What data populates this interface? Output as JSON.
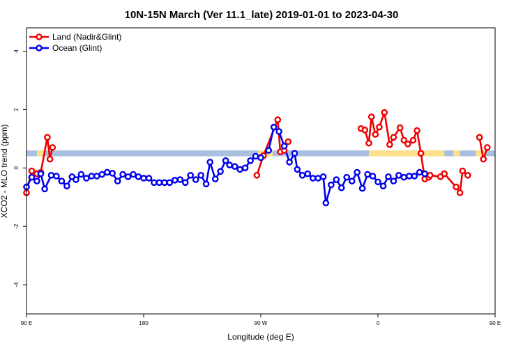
{
  "chart_data": {
    "type": "line",
    "title": "10N-15N March (Ver 11.1_late)   2019-01-01 to 2023-04-30",
    "xlabel": "Longitude (deg E)",
    "ylabel": "XCO2 - MLO trend (ppm)",
    "xlim": [
      90,
      450
    ],
    "ylim": [
      -5,
      4.8
    ],
    "x_ticks": [
      {
        "value": 90,
        "label": "90 E"
      },
      {
        "value": 180,
        "label": "180"
      },
      {
        "value": 270,
        "label": "90 W"
      },
      {
        "value": 360,
        "label": "0"
      },
      {
        "value": 450,
        "label": "90 E"
      },
      {
        "value": 540,
        "label": "180"
      }
    ],
    "y_ticks": [
      {
        "value": -4,
        "label": "-4"
      },
      {
        "value": -2,
        "label": "-2"
      },
      {
        "value": 0,
        "label": "0"
      },
      {
        "value": 2,
        "label": "2"
      },
      {
        "value": 4,
        "label": "4"
      }
    ],
    "grid": false,
    "legend_position": "top-left",
    "band": {
      "y_low": 0.4,
      "y_high": 0.6,
      "color": "#a9bfe0",
      "land_color": "#fce08a",
      "land_x_ranges": [
        [
          98,
          104
        ],
        [
          268,
          279
        ],
        [
          353,
          411
        ],
        [
          418,
          423
        ],
        [
          435,
          442
        ]
      ]
    },
    "series": [
      {
        "name": "Land (Nadir&Glint)",
        "color": "#ee0000",
        "segments": [
          [
            [
              90,
              -0.85
            ],
            [
              94,
              -0.1
            ],
            [
              98,
              -0.2
            ],
            [
              101,
              -0.15
            ],
            [
              106,
              1.05
            ],
            [
              108,
              0.3
            ],
            [
              110,
              0.7
            ]
          ],
          [
            [
              267,
              -0.25
            ],
            [
              272,
              0.42
            ],
            [
              283,
              1.65
            ],
            [
              285,
              0.55
            ],
            [
              288,
              0.6
            ],
            [
              291,
              0.9
            ]
          ],
          [
            [
              347,
              1.35
            ],
            [
              350,
              1.3
            ],
            [
              353,
              0.85
            ],
            [
              355,
              1.75
            ],
            [
              358,
              1.15
            ],
            [
              361,
              1.4
            ],
            [
              365,
              1.9
            ],
            [
              369,
              0.8
            ],
            [
              372,
              1.05
            ],
            [
              377,
              1.38
            ],
            [
              380,
              0.95
            ],
            [
              383,
              0.82
            ],
            [
              387,
              0.95
            ],
            [
              390,
              1.28
            ],
            [
              393,
              0.5
            ],
            [
              396,
              -0.38
            ],
            [
              399,
              -0.32
            ]
          ],
          [
            [
              400,
              -0.25
            ],
            [
              408,
              -0.3
            ],
            [
              411,
              -0.2
            ],
            [
              420,
              -0.65
            ],
            [
              423,
              -0.85
            ],
            [
              425,
              -0.1
            ],
            [
              429,
              -0.25
            ]
          ],
          [
            [
              438,
              1.05
            ],
            [
              441,
              0.3
            ],
            [
              444,
              0.7
            ]
          ]
        ]
      },
      {
        "name": "Ocean (Glint)",
        "color": "#0000ee",
        "points": [
          [
            90,
            -0.65
          ],
          [
            94,
            -0.32
          ],
          [
            98,
            -0.45
          ],
          [
            101,
            -0.2
          ],
          [
            104,
            -0.72
          ],
          [
            109,
            -0.25
          ],
          [
            113,
            -0.28
          ],
          [
            117,
            -0.45
          ],
          [
            121,
            -0.62
          ],
          [
            125,
            -0.3
          ],
          [
            128,
            -0.4
          ],
          [
            132,
            -0.22
          ],
          [
            136,
            -0.35
          ],
          [
            140,
            -0.28
          ],
          [
            144,
            -0.28
          ],
          [
            148,
            -0.22
          ],
          [
            152,
            -0.15
          ],
          [
            156,
            -0.18
          ],
          [
            160,
            -0.45
          ],
          [
            164,
            -0.22
          ],
          [
            168,
            -0.3
          ],
          [
            172,
            -0.22
          ],
          [
            176,
            -0.3
          ],
          [
            180,
            -0.35
          ],
          [
            184,
            -0.35
          ],
          [
            188,
            -0.5
          ],
          [
            192,
            -0.5
          ],
          [
            196,
            -0.5
          ],
          [
            200,
            -0.5
          ],
          [
            204,
            -0.42
          ],
          [
            208,
            -0.4
          ],
          [
            212,
            -0.5
          ],
          [
            216,
            -0.25
          ],
          [
            220,
            -0.4
          ],
          [
            224,
            -0.25
          ],
          [
            228,
            -0.55
          ],
          [
            231,
            0.2
          ],
          [
            235,
            -0.38
          ],
          [
            239,
            -0.12
          ],
          [
            243,
            0.25
          ],
          [
            246,
            0.1
          ],
          [
            250,
            0.05
          ],
          [
            254,
            -0.05
          ],
          [
            258,
            0.0
          ],
          [
            262,
            0.25
          ],
          [
            266,
            0.4
          ],
          [
            270,
            0.35
          ],
          [
            276,
            0.6
          ],
          [
            280,
            1.4
          ],
          [
            284,
            1.25
          ],
          [
            288,
            0.75
          ],
          [
            292,
            0.2
          ],
          [
            296,
            0.5
          ],
          [
            298,
            -0.05
          ],
          [
            302,
            -0.25
          ],
          [
            306,
            -0.2
          ],
          [
            310,
            -0.35
          ],
          [
            314,
            -0.35
          ],
          [
            318,
            -0.3
          ],
          [
            320,
            -1.2
          ],
          [
            324,
            -0.58
          ],
          [
            328,
            -0.4
          ],
          [
            332,
            -0.68
          ],
          [
            336,
            -0.32
          ],
          [
            340,
            -0.45
          ],
          [
            344,
            -0.15
          ],
          [
            348,
            -0.7
          ],
          [
            352,
            -0.22
          ],
          [
            356,
            -0.28
          ],
          [
            360,
            -0.48
          ],
          [
            364,
            -0.62
          ],
          [
            368,
            -0.3
          ],
          [
            372,
            -0.45
          ],
          [
            376,
            -0.25
          ],
          [
            380,
            -0.32
          ],
          [
            384,
            -0.28
          ],
          [
            388,
            -0.28
          ],
          [
            392,
            -0.15
          ],
          [
            396,
            -0.2
          ]
        ]
      }
    ]
  }
}
